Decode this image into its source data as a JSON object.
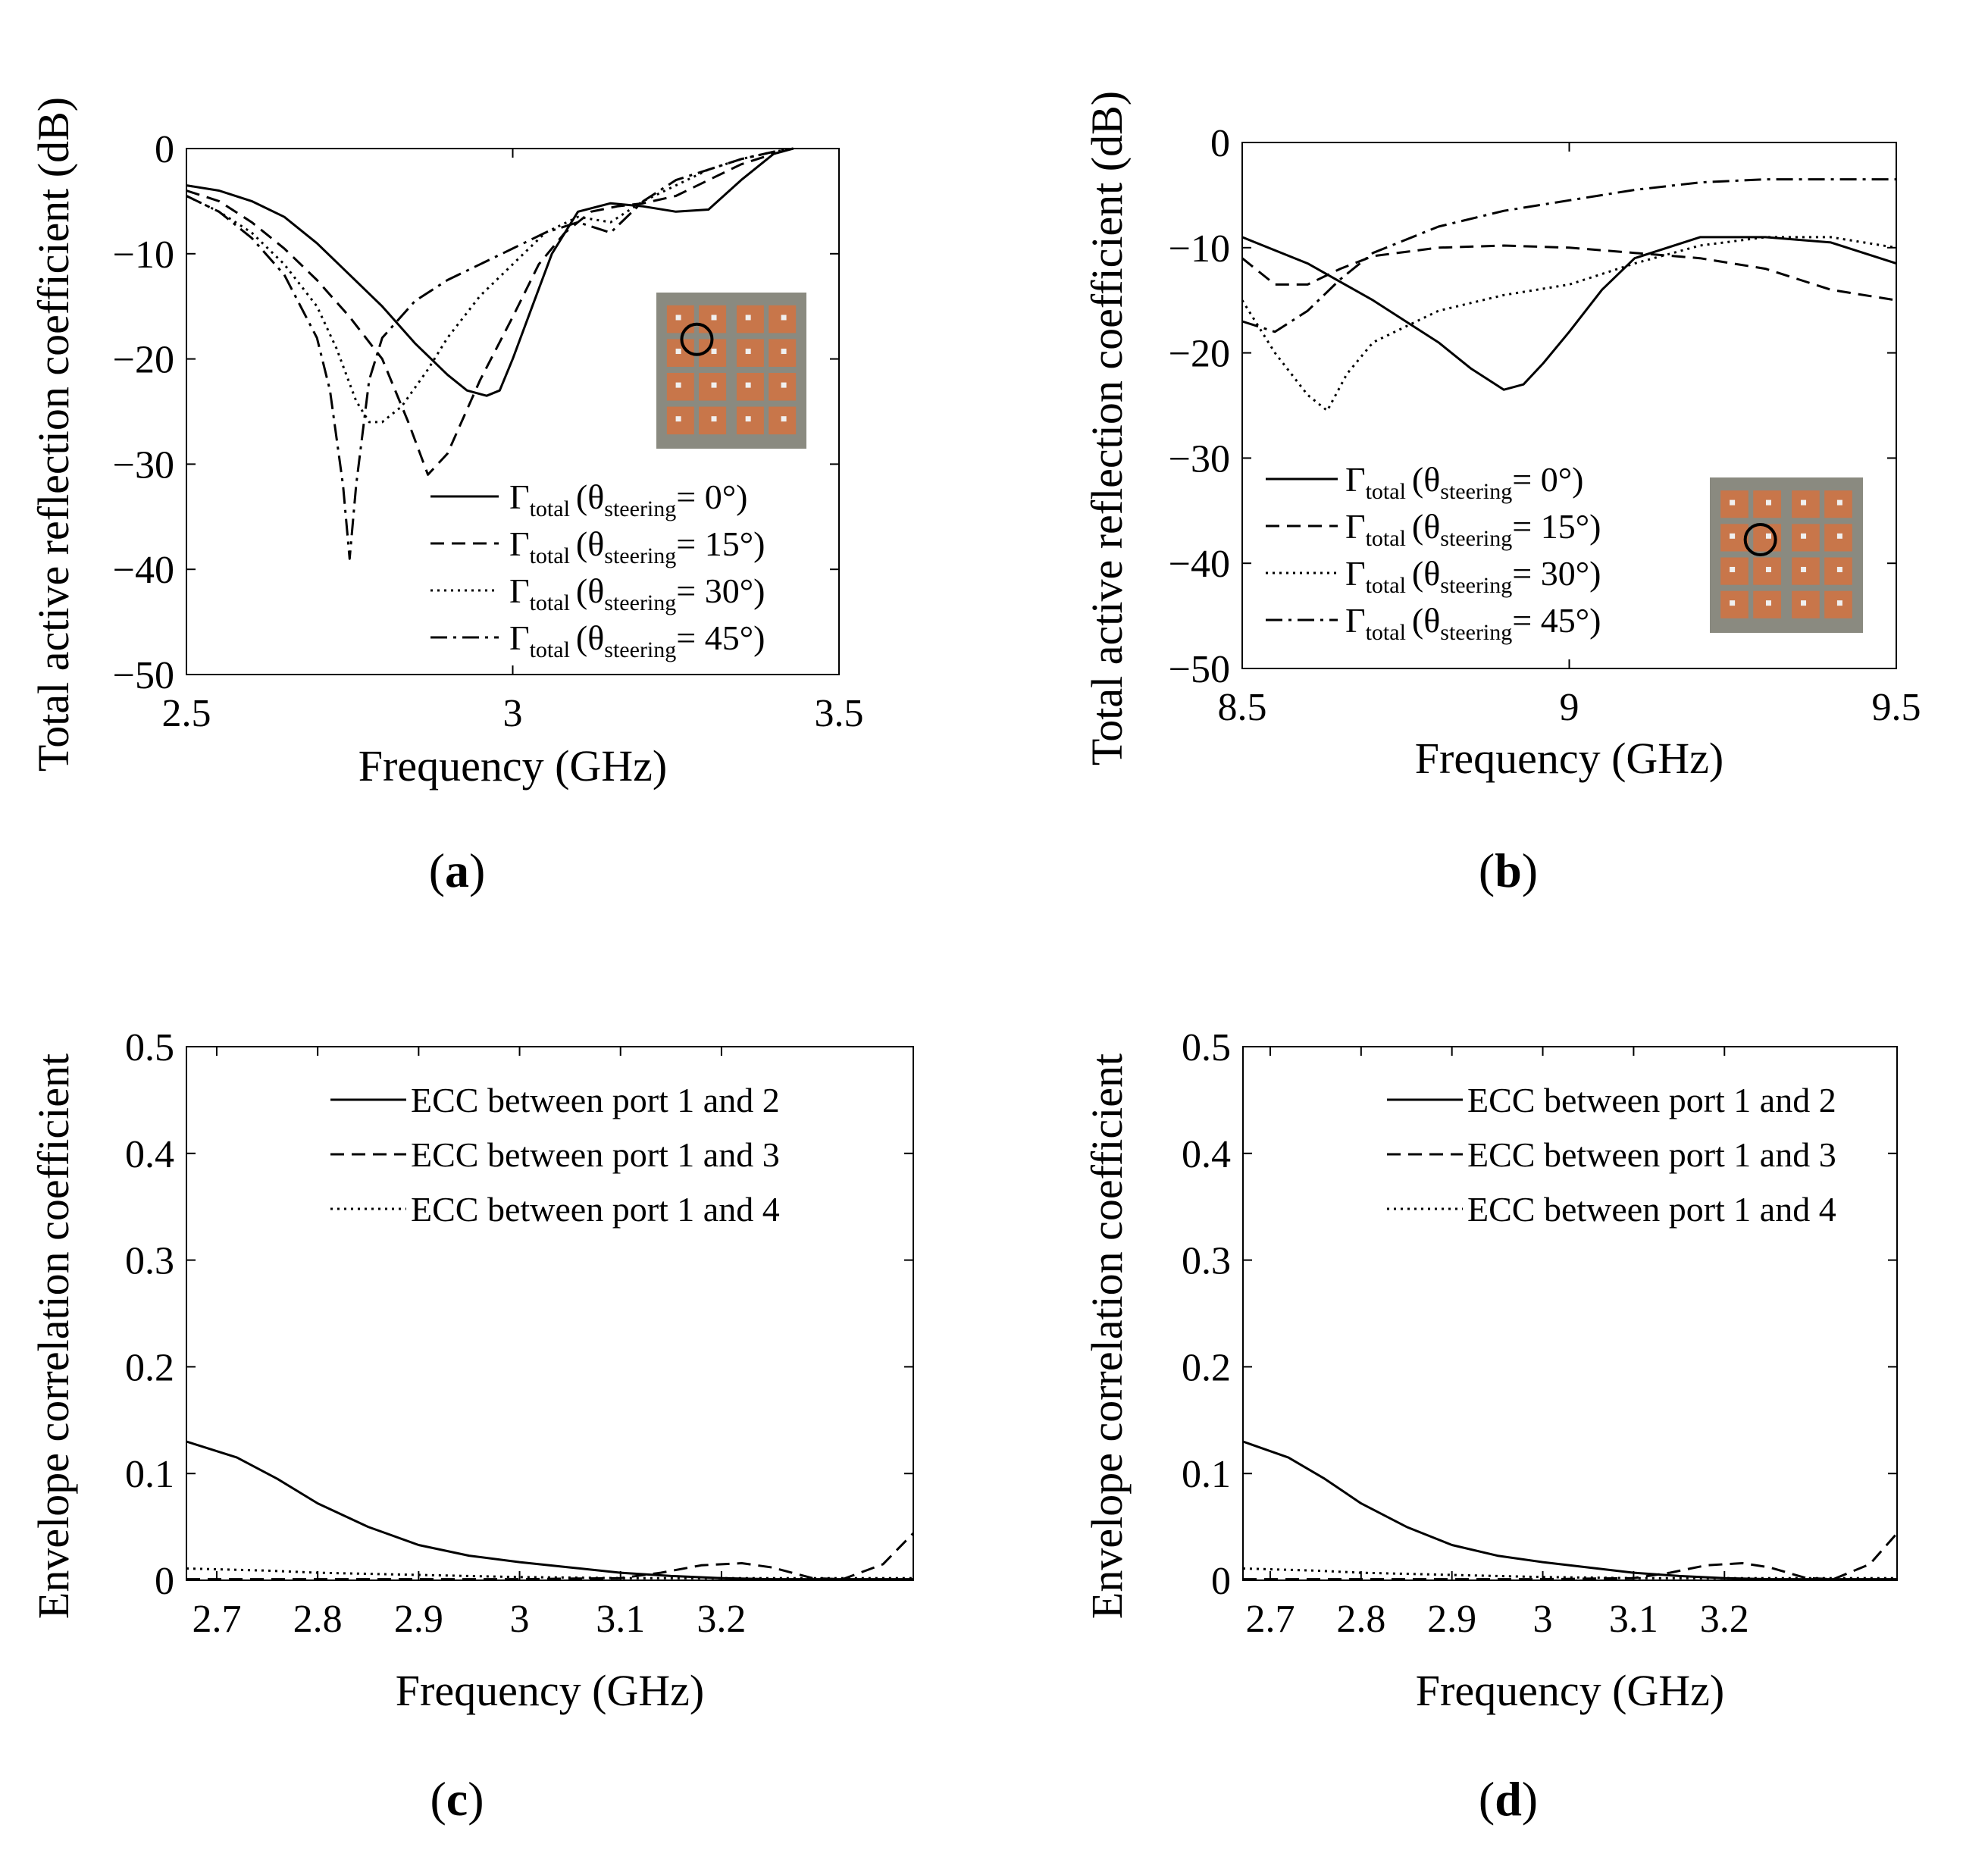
{
  "chart_data": [
    {
      "type": "line",
      "panel_label": "a",
      "xlabel": "Frequency (GHz)",
      "ylabel": "Total active reflection coefficient (dB)",
      "xlim": [
        2.5,
        3.5
      ],
      "ylim": [
        -50,
        0
      ],
      "xticks": [
        2.5,
        3,
        3.5
      ],
      "xtick_labels": [
        "2.5",
        "3",
        "3.5"
      ],
      "yticks": [
        0,
        -10,
        -20,
        -30,
        -40,
        -50
      ],
      "ytick_labels": [
        "0",
        "−10",
        "−20",
        "−30",
        "−40",
        "−50"
      ],
      "legend_position": "bottom-right",
      "inset": "antenna-photo-top-left-element",
      "series": [
        {
          "name": "Γtotal (θsteering= 0°)",
          "main": "Γ",
          "sub1": "total",
          "theta": "θ",
          "sub2": "steering",
          "tail": "= 0°)",
          "dash": "solid",
          "x": [
            2.5,
            2.55,
            2.6,
            2.65,
            2.7,
            2.75,
            2.8,
            2.85,
            2.9,
            2.93,
            2.96,
            2.98,
            3.0,
            3.03,
            3.06,
            3.1,
            3.15,
            3.2,
            3.25,
            3.3,
            3.35,
            3.4,
            3.43
          ],
          "y": [
            -3.5,
            -4,
            -5,
            -6.5,
            -9,
            -12,
            -15,
            -18.5,
            -21.5,
            -23,
            -23.5,
            -23,
            -20,
            -15,
            -10,
            -6,
            -5.2,
            -5.5,
            -6,
            -5.8,
            -3,
            -0.5,
            0
          ]
        },
        {
          "name": "Γtotal (θsteering= 15°)",
          "main": "Γ",
          "sub1": "total",
          "theta": "θ",
          "sub2": "steering",
          "tail": "= 15°)",
          "dash": "dashed",
          "x": [
            2.5,
            2.55,
            2.6,
            2.65,
            2.7,
            2.75,
            2.8,
            2.84,
            2.87,
            2.9,
            2.95,
            3.0,
            3.04,
            3.08,
            3.12,
            3.16,
            3.2,
            3.25,
            3.3,
            3.35,
            3.4,
            3.43
          ],
          "y": [
            -4,
            -5,
            -7,
            -9.5,
            -12.5,
            -16,
            -20,
            -26,
            -31,
            -29,
            -22,
            -16,
            -11,
            -8,
            -6,
            -5.5,
            -5.2,
            -4.5,
            -3,
            -1.5,
            -0.5,
            0
          ]
        },
        {
          "name": "Γtotal (θsteering= 30°)",
          "main": "Γ",
          "sub1": "total",
          "theta": "θ",
          "sub2": "steering",
          "tail": "= 30°)",
          "dash": "dotted",
          "x": [
            2.5,
            2.55,
            2.6,
            2.65,
            2.7,
            2.73,
            2.76,
            2.78,
            2.8,
            2.83,
            2.87,
            2.9,
            2.95,
            3.0,
            3.05,
            3.1,
            3.15,
            3.2,
            3.25,
            3.3,
            3.35,
            3.4,
            3.43
          ],
          "y": [
            -4.5,
            -6,
            -8,
            -11,
            -15,
            -19,
            -24,
            -26,
            -26,
            -24.5,
            -21,
            -18,
            -14,
            -11,
            -8,
            -6.5,
            -7,
            -5,
            -3.5,
            -2,
            -1,
            -0.3,
            0
          ]
        },
        {
          "name": "Γtotal (θsteering= 45°)",
          "main": "Γ",
          "sub1": "total",
          "theta": "θ",
          "sub2": "steering",
          "tail": "= 45°)",
          "dash": "dashdot",
          "x": [
            2.5,
            2.55,
            2.6,
            2.65,
            2.7,
            2.72,
            2.74,
            2.75,
            2.76,
            2.78,
            2.8,
            2.85,
            2.9,
            2.95,
            3.0,
            3.05,
            3.1,
            3.15,
            3.2,
            3.25,
            3.3,
            3.35,
            3.4,
            3.43
          ],
          "y": [
            -4.5,
            -6,
            -8.5,
            -12,
            -18,
            -23,
            -32,
            -39,
            -32,
            -22,
            -18,
            -14.5,
            -12.5,
            -11,
            -9.5,
            -8,
            -7,
            -8,
            -5,
            -3,
            -2,
            -1,
            -0.3,
            0
          ]
        }
      ]
    },
    {
      "type": "line",
      "panel_label": "b",
      "xlabel": "Frequency (GHz)",
      "ylabel": "Total active reflection coefficient (dB)",
      "xlim": [
        8.5,
        9.5
      ],
      "ylim": [
        -50,
        0
      ],
      "xticks": [
        8.5,
        9,
        9.5
      ],
      "xtick_labels": [
        "8.5",
        "9",
        "9.5"
      ],
      "yticks": [
        0,
        -10,
        -20,
        -30,
        -40,
        -50
      ],
      "ytick_labels": [
        "0",
        "−10",
        "−20",
        "−30",
        "−40",
        "−50"
      ],
      "legend_position": "bottom-left",
      "inset": "antenna-photo-middle-element",
      "series": [
        {
          "name": "Γtotal (θsteering= 0°)",
          "main": "Γ",
          "sub1": "total",
          "theta": "θ",
          "sub2": "steering",
          "tail": "= 0°)",
          "dash": "solid",
          "x": [
            8.5,
            8.6,
            8.7,
            8.8,
            8.85,
            8.9,
            8.93,
            8.96,
            9.0,
            9.05,
            9.1,
            9.2,
            9.3,
            9.4,
            9.5
          ],
          "y": [
            -9,
            -11.5,
            -15,
            -19,
            -21.5,
            -23.5,
            -23,
            -21,
            -18,
            -14,
            -11,
            -9,
            -9,
            -9.5,
            -11.5
          ]
        },
        {
          "name": "Γtotal (θsteering= 15°)",
          "main": "Γ",
          "sub1": "total",
          "theta": "θ",
          "sub2": "steering",
          "tail": "= 15°)",
          "dash": "dashed",
          "x": [
            8.5,
            8.55,
            8.6,
            8.65,
            8.7,
            8.8,
            8.9,
            9.0,
            9.1,
            9.2,
            9.3,
            9.4,
            9.5
          ],
          "y": [
            -11,
            -13.5,
            -13.5,
            -12,
            -10.8,
            -10,
            -9.8,
            -10,
            -10.5,
            -11,
            -12,
            -14,
            -15
          ]
        },
        {
          "name": "Γtotal (θsteering= 30°)",
          "main": "Γ",
          "sub1": "total",
          "theta": "θ",
          "sub2": "steering",
          "tail": "= 30°)",
          "dash": "dotted",
          "x": [
            8.5,
            8.55,
            8.6,
            8.63,
            8.66,
            8.7,
            8.8,
            8.9,
            9.0,
            9.1,
            9.2,
            9.3,
            9.4,
            9.5
          ],
          "y": [
            -15,
            -20,
            -24,
            -25.5,
            -22,
            -19,
            -16,
            -14.5,
            -13.5,
            -11.5,
            -9.8,
            -9,
            -9,
            -10
          ]
        },
        {
          "name": "Γtotal (θsteering= 45°)",
          "main": "Γ",
          "sub1": "total",
          "theta": "θ",
          "sub2": "steering",
          "tail": "= 45°)",
          "dash": "dashdot",
          "x": [
            8.5,
            8.55,
            8.6,
            8.65,
            8.7,
            8.8,
            8.9,
            9.0,
            9.1,
            9.2,
            9.3,
            9.4,
            9.5
          ],
          "y": [
            -17,
            -18,
            -16,
            -13,
            -10.5,
            -8,
            -6.5,
            -5.5,
            -4.5,
            -3.8,
            -3.5,
            -3.5,
            -3.5
          ]
        }
      ]
    },
    {
      "type": "line",
      "panel_label": "c",
      "xlabel": "Frequency (GHz)",
      "ylabel": "Envelope correlation coefficient",
      "xlim": [
        2.67,
        3.39
      ],
      "ylim": [
        0,
        0.5
      ],
      "xticks": [
        2.7,
        2.8,
        2.9,
        3,
        3.1,
        3.2
      ],
      "xtick_labels": [
        "2.7",
        "2.8",
        "2.9",
        "3",
        "3.1",
        "3.2"
      ],
      "yticks": [
        0,
        0.1,
        0.2,
        0.3,
        0.4,
        0.5
      ],
      "ytick_labels": [
        "0",
        "0.1",
        "0.2",
        "0.3",
        "0.4",
        "0.5"
      ],
      "legend_position": "top-right",
      "series": [
        {
          "name": "ECC between port 1 and 2",
          "dash": "solid",
          "x": [
            2.67,
            2.72,
            2.76,
            2.8,
            2.85,
            2.9,
            2.95,
            3.0,
            3.05,
            3.1,
            3.15,
            3.2,
            3.25,
            3.3,
            3.35,
            3.39
          ],
          "y": [
            0.13,
            0.115,
            0.095,
            0.072,
            0.05,
            0.033,
            0.023,
            0.017,
            0.012,
            0.007,
            0.004,
            0.002,
            0.001,
            0.001,
            0.001,
            0.001
          ]
        },
        {
          "name": "ECC between port 1 and 3",
          "dash": "dashed",
          "x": [
            2.67,
            2.8,
            2.9,
            3.0,
            3.1,
            3.14,
            3.18,
            3.22,
            3.25,
            3.29,
            3.32,
            3.36,
            3.39
          ],
          "y": [
            0.001,
            0.001,
            0.001,
            0.001,
            0.002,
            0.007,
            0.014,
            0.016,
            0.012,
            0.002,
            0.001,
            0.015,
            0.044
          ]
        },
        {
          "name": "ECC between port 1 and 4",
          "dash": "dotted",
          "x": [
            2.67,
            2.75,
            2.8,
            2.9,
            3.0,
            3.1,
            3.2,
            3.3,
            3.39
          ],
          "y": [
            0.011,
            0.009,
            0.007,
            0.005,
            0.003,
            0.002,
            0.002,
            0.002,
            0.002
          ]
        }
      ]
    },
    {
      "type": "line",
      "panel_label": "d",
      "xlabel": "Frequency (GHz)",
      "ylabel": "Envelope correlation coefficient",
      "xlim": [
        2.67,
        3.39
      ],
      "ylim": [
        0,
        0.5
      ],
      "xticks": [
        2.7,
        2.8,
        2.9,
        3,
        3.1,
        3.2
      ],
      "xtick_labels": [
        "2.7",
        "2.8",
        "2.9",
        "3",
        "3.1",
        "3.2"
      ],
      "yticks": [
        0,
        0.1,
        0.2,
        0.3,
        0.4,
        0.5
      ],
      "ytick_labels": [
        "0",
        "0.1",
        "0.2",
        "0.3",
        "0.4",
        "0.5"
      ],
      "legend_position": "top-right",
      "series": [
        {
          "name": "ECC between port 1 and 2",
          "dash": "solid",
          "x": [
            2.67,
            2.72,
            2.76,
            2.8,
            2.85,
            2.9,
            2.95,
            3.0,
            3.05,
            3.1,
            3.15,
            3.2,
            3.25,
            3.3,
            3.35,
            3.39
          ],
          "y": [
            0.13,
            0.115,
            0.095,
            0.072,
            0.05,
            0.033,
            0.023,
            0.017,
            0.012,
            0.007,
            0.004,
            0.002,
            0.001,
            0.001,
            0.001,
            0.001
          ]
        },
        {
          "name": "ECC between port 1 and 3",
          "dash": "dashed",
          "x": [
            2.67,
            2.8,
            2.9,
            3.0,
            3.1,
            3.14,
            3.18,
            3.22,
            3.25,
            3.29,
            3.32,
            3.36,
            3.39
          ],
          "y": [
            0.001,
            0.001,
            0.001,
            0.001,
            0.002,
            0.007,
            0.014,
            0.016,
            0.012,
            0.002,
            0.001,
            0.015,
            0.044
          ]
        },
        {
          "name": "ECC between port 1 and 4",
          "dash": "dotted",
          "x": [
            2.67,
            2.75,
            2.8,
            2.9,
            3.0,
            3.1,
            3.2,
            3.3,
            3.39
          ],
          "y": [
            0.011,
            0.009,
            0.007,
            0.005,
            0.003,
            0.002,
            0.002,
            0.002,
            0.002
          ]
        }
      ]
    }
  ]
}
